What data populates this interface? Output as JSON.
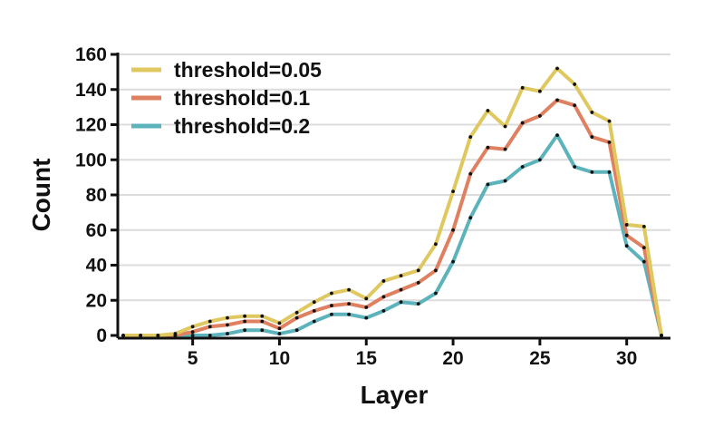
{
  "chart_data": {
    "type": "line",
    "xlabel": "Layer",
    "ylabel": "Count",
    "xlim": [
      0,
      32
    ],
    "ylim": [
      0,
      160
    ],
    "xticks": [
      5,
      10,
      15,
      20,
      25,
      30
    ],
    "yticks": [
      0,
      20,
      40,
      60,
      80,
      100,
      120,
      140,
      160
    ],
    "grid": "horizontal",
    "legend": "top-left",
    "x": [
      1,
      2,
      3,
      4,
      5,
      6,
      7,
      8,
      9,
      10,
      11,
      12,
      13,
      14,
      15,
      16,
      17,
      18,
      19,
      20,
      21,
      22,
      23,
      24,
      25,
      26,
      27,
      28,
      29,
      30,
      31,
      32
    ],
    "series": [
      {
        "name": "threshold=0.05",
        "color": "#e0c860",
        "values": [
          0,
          0,
          0,
          1,
          5,
          8,
          10,
          11,
          11,
          7,
          13,
          19,
          24,
          26,
          21,
          31,
          34,
          37,
          52,
          82,
          113,
          128,
          119,
          141,
          139,
          152,
          143,
          127,
          122,
          63,
          62,
          0
        ]
      },
      {
        "name": "threshold=0.1",
        "color": "#df8060",
        "values": [
          0,
          0,
          0,
          0,
          2,
          5,
          6,
          8,
          8,
          4,
          10,
          14,
          17,
          18,
          16,
          22,
          26,
          30,
          37,
          60,
          92,
          107,
          106,
          121,
          125,
          134,
          131,
          113,
          110,
          57,
          50,
          0
        ]
      },
      {
        "name": "threshold=0.2",
        "color": "#5db3bb",
        "values": [
          0,
          0,
          0,
          0,
          0,
          0,
          1,
          3,
          3,
          1,
          3,
          8,
          12,
          12,
          10,
          14,
          19,
          18,
          24,
          42,
          67,
          86,
          88,
          96,
          100,
          114,
          96,
          93,
          93,
          51,
          42,
          0
        ]
      }
    ]
  }
}
